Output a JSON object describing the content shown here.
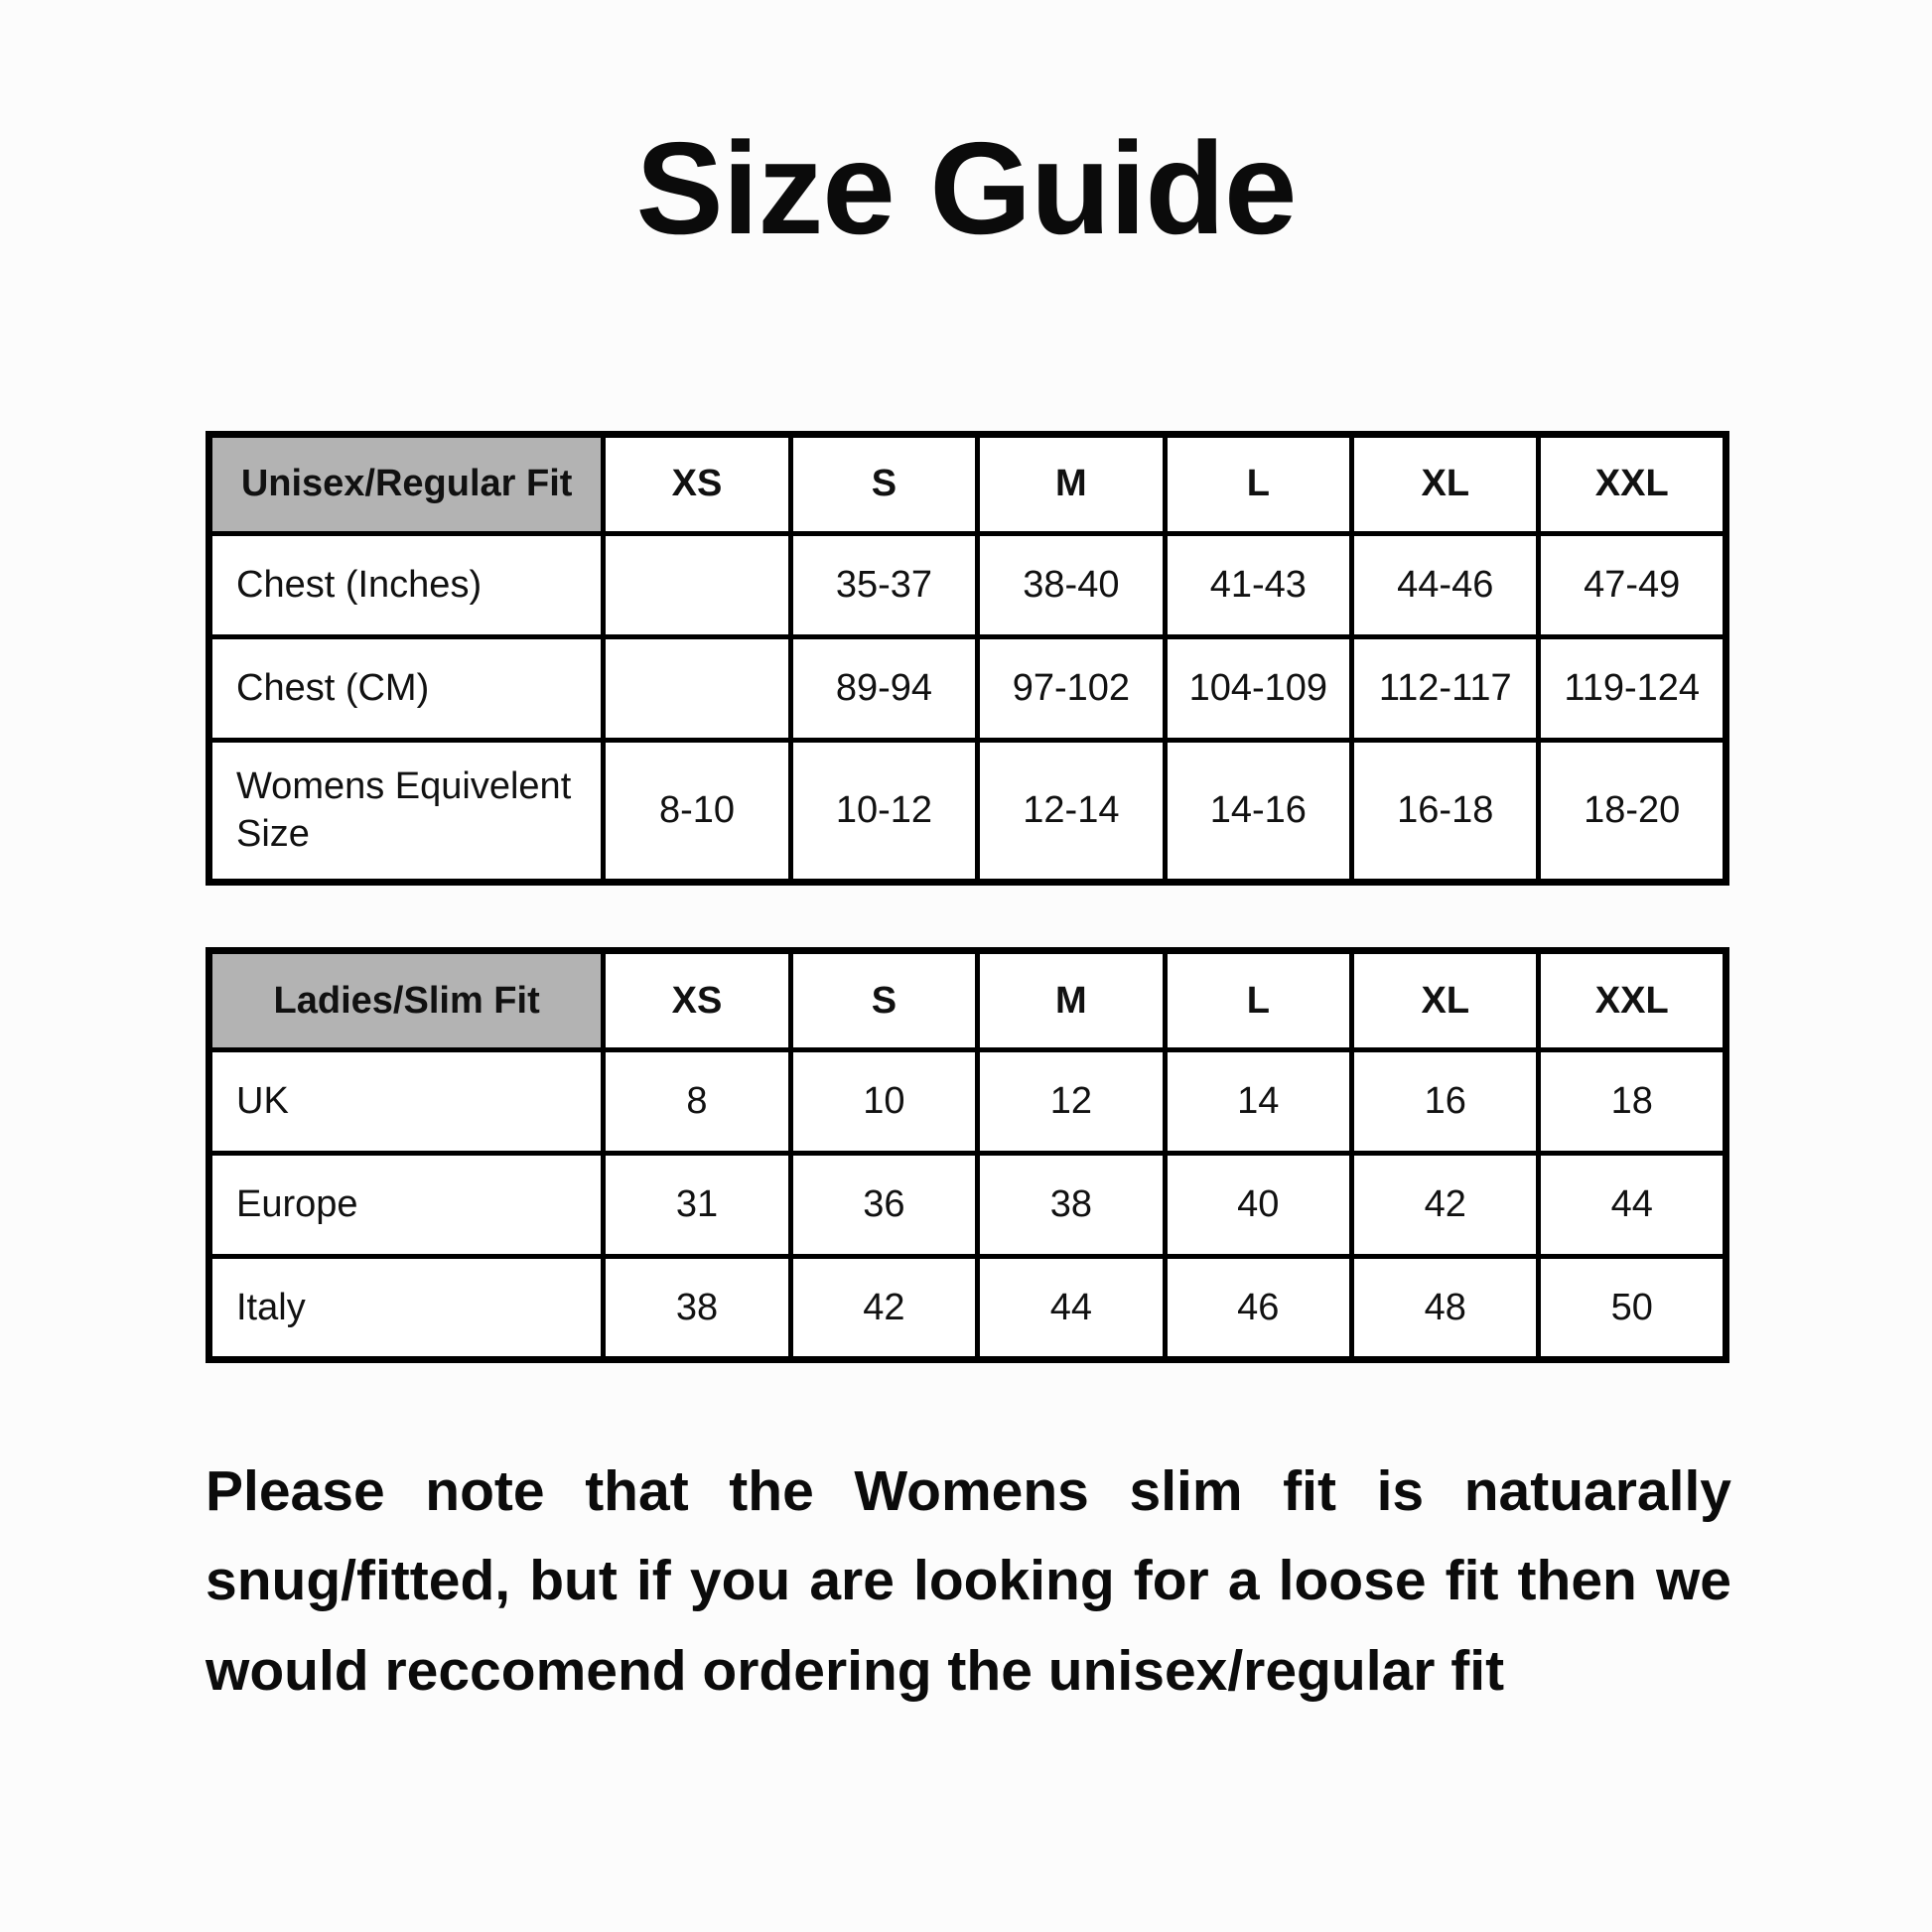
{
  "page": {
    "title": "Size Guide",
    "colors": {
      "background": "#fcfcfc",
      "table_header_bg": "#b3b3b3",
      "border": "#000000",
      "text": "#0b0b0b"
    }
  },
  "unisex_table": {
    "name": "Unisex/Regular Fit",
    "columns": [
      "XS",
      "S",
      "M",
      "L",
      "XL",
      "XXL"
    ],
    "rows": [
      {
        "label": "Chest (Inches)",
        "values": [
          "",
          "35-37",
          "38-40",
          "41-43",
          "44-46",
          "47-49"
        ]
      },
      {
        "label": "Chest (CM)",
        "values": [
          "",
          "89-94",
          "97-102",
          "104-109",
          "112-117",
          "119-124"
        ]
      },
      {
        "label": "Womens Equivelent Size",
        "values": [
          "8-10",
          "10-12",
          "12-14",
          "14-16",
          "16-18",
          "18-20"
        ]
      }
    ]
  },
  "ladies_table": {
    "name": "Ladies/Slim Fit",
    "columns": [
      "XS",
      "S",
      "M",
      "L",
      "XL",
      "XXL"
    ],
    "rows": [
      {
        "label": "UK",
        "values": [
          "8",
          "10",
          "12",
          "14",
          "16",
          "18"
        ]
      },
      {
        "label": "Europe",
        "values": [
          "31",
          "36",
          "38",
          "40",
          "42",
          "44"
        ]
      },
      {
        "label": "Italy",
        "values": [
          "38",
          "42",
          "44",
          "46",
          "48",
          "50"
        ]
      }
    ]
  },
  "note": "Please note that the Womens slim fit is natuarally snug/fitted, but if you are looking for a loose fit then we would reccomend ordering the unisex/regular fit"
}
